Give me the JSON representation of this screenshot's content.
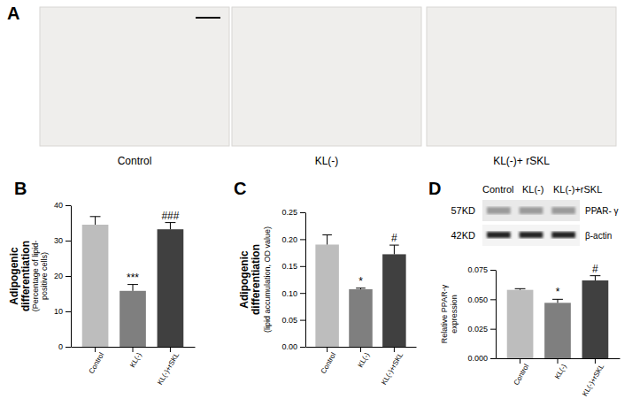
{
  "chart_data": [
    {
      "type": "image",
      "panel": "A",
      "captions": [
        "Control",
        "KL(-)",
        "KL(-)+ rSKL"
      ]
    },
    {
      "type": "bar",
      "panel": "B",
      "categories": [
        "Control",
        "KL(-)",
        "KL(-)+rSKL"
      ],
      "values": [
        34.5,
        15.8,
        33.2
      ],
      "errors": [
        2.3,
        1.8,
        1.9
      ],
      "annotations": [
        null,
        "***",
        "###"
      ],
      "colors": [
        "#bdbdbd",
        "#7f7f7f",
        "#404040"
      ],
      "ylabel": [
        "Adipogenic",
        "differentiation"
      ],
      "ylabel_note": [
        "(Percentage of lipid-",
        "positive cells)"
      ],
      "ylim": [
        0,
        40
      ],
      "yticks": [
        0,
        10,
        20,
        30,
        40
      ]
    },
    {
      "type": "bar",
      "panel": "C",
      "categories": [
        "Control",
        "KL(-)",
        "KL(-)+rSKL"
      ],
      "values": [
        0.19,
        0.107,
        0.172
      ],
      "errors": [
        0.018,
        0.002,
        0.017
      ],
      "annotations": [
        null,
        "*",
        "#"
      ],
      "colors": [
        "#bdbdbd",
        "#7f7f7f",
        "#404040"
      ],
      "ylabel": [
        "Adipogenic",
        "differentiation"
      ],
      "ylabel_note": [
        "(lipid accumulation, OD value)"
      ],
      "ylim": [
        0,
        0.25
      ],
      "yticks": [
        {
          "value": 0,
          "label": "0.00"
        },
        {
          "value": 0.05,
          "label": "0.05"
        },
        {
          "value": 0.1,
          "label": "0.10"
        },
        {
          "value": 0.15,
          "label": "0.15"
        },
        {
          "value": 0.2,
          "label": "0.20"
        },
        {
          "value": 0.25,
          "label": "0.25"
        }
      ]
    },
    {
      "type": "bar",
      "panel": "D",
      "categories": [
        "Control",
        "KL(-)",
        "KL(-)+rSKL"
      ],
      "values": [
        0.058,
        0.047,
        0.066
      ],
      "errors": [
        0.001,
        0.003,
        0.004
      ],
      "annotations": [
        null,
        "*",
        "#"
      ],
      "colors": [
        "#bdbdbd",
        "#7f7f7f",
        "#404040"
      ],
      "ylabel": [
        "Relative PPAR-γ",
        "expression"
      ],
      "ylim": [
        0,
        0.075
      ],
      "yticks": [
        {
          "value": 0,
          "label": "0.000"
        },
        {
          "value": 0.025,
          "label": "0.025"
        },
        {
          "value": 0.05,
          "label": "0.050"
        },
        {
          "value": 0.075,
          "label": "0.075"
        }
      ],
      "blot": {
        "lanes": [
          "Control",
          "KL(-)",
          "KL(-)+rSKL"
        ],
        "rows": [
          {
            "size": "57KD",
            "name": "PPAR- γ"
          },
          {
            "size": "42KD",
            "name": "β-actin"
          }
        ]
      }
    }
  ]
}
